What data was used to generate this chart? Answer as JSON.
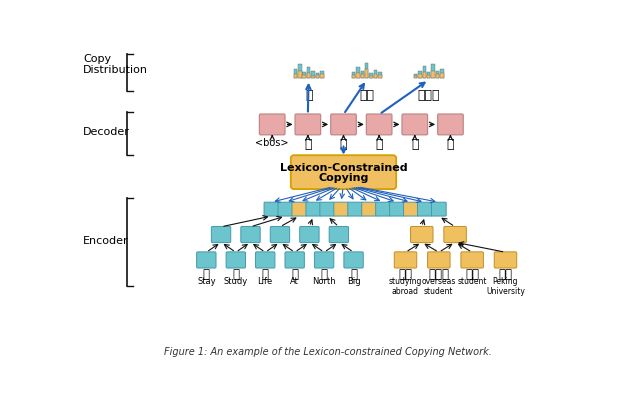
{
  "bg_color": "#ffffff",
  "cyan_color": "#6cc5cc",
  "yellow_color": "#f0c060",
  "pink_color": "#e8a8a8",
  "blue_arrow": "#2060c0",
  "black_color": "#111111",
  "gray_edge": "#888888",
  "pink_edge": "#c08888",
  "cyan_edge": "#4499aa",
  "yellow_edge": "#c09020",
  "lcc_edge": "#d4a000",
  "decoder_labels": [
    "<bos>",
    "北",
    "大",
    "留",
    "学",
    "生"
  ],
  "copy_dist_labels": [
    "留",
    "留学",
    "留学生"
  ],
  "left_zh": [
    "留",
    "学",
    "生",
    "在",
    "北",
    "大"
  ],
  "left_en": [
    "Stay",
    "Study",
    "Life",
    "At",
    "North",
    "Big"
  ],
  "right_zh": [
    "留学",
    "留学生",
    "学生",
    "北大"
  ],
  "right_en": [
    "studying\nabroad",
    "overseas\nstudent",
    "student",
    "Peking\nUniversity"
  ],
  "caption": "Figure 1: An example of the Lexicon-constrained Copying Network."
}
